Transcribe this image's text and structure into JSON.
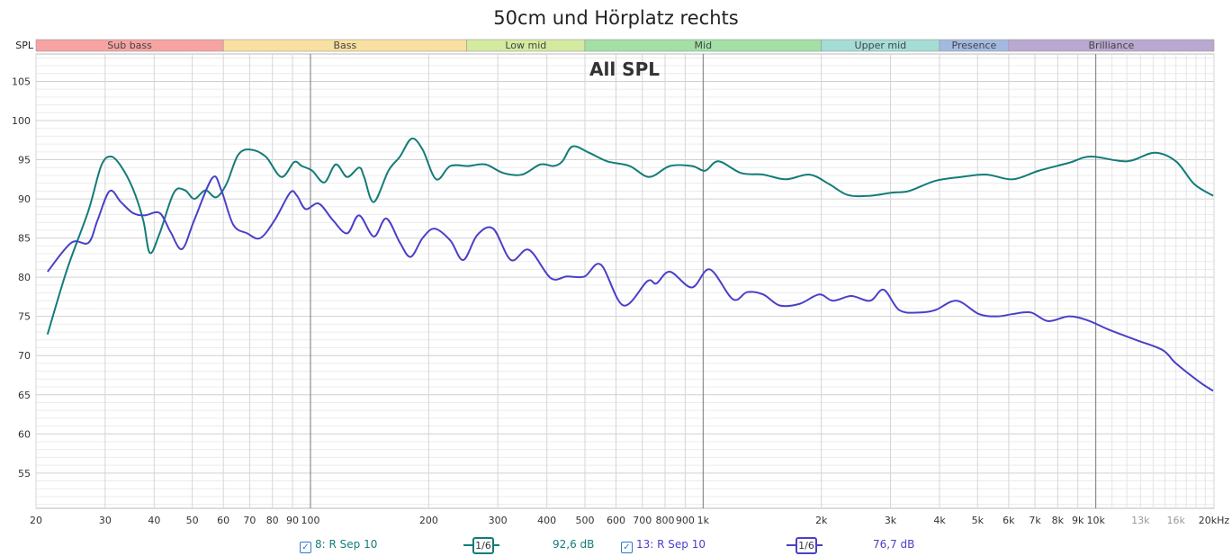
{
  "chart_data": {
    "type": "line",
    "title": "50cm und Hörplatz rechts",
    "overlay_label": "All SPL",
    "ylabel": "SPL",
    "xunit": "Hz",
    "xscale": "log",
    "xlim": [
      20,
      20000
    ],
    "ylim": [
      50.5,
      108.5
    ],
    "grid": true,
    "y_ticks": [
      55,
      60,
      65,
      70,
      75,
      80,
      85,
      90,
      95,
      100,
      105
    ],
    "x_ticks": [
      {
        "v": 20,
        "l": "20"
      },
      {
        "v": 30,
        "l": "30"
      },
      {
        "v": 40,
        "l": "40"
      },
      {
        "v": 50,
        "l": "50"
      },
      {
        "v": 60,
        "l": "60"
      },
      {
        "v": 70,
        "l": "70"
      },
      {
        "v": 80,
        "l": "80"
      },
      {
        "v": 90,
        "l": "90"
      },
      {
        "v": 100,
        "l": "100"
      },
      {
        "v": 200,
        "l": "200"
      },
      {
        "v": 300,
        "l": "300"
      },
      {
        "v": 400,
        "l": "400"
      },
      {
        "v": 500,
        "l": "500"
      },
      {
        "v": 600,
        "l": "600"
      },
      {
        "v": 700,
        "l": "700"
      },
      {
        "v": 800,
        "l": "800"
      },
      {
        "v": 900,
        "l": "900"
      },
      {
        "v": 1000,
        "l": "1k"
      },
      {
        "v": 2000,
        "l": "2k"
      },
      {
        "v": 3000,
        "l": "3k"
      },
      {
        "v": 4000,
        "l": "4k"
      },
      {
        "v": 5000,
        "l": "5k"
      },
      {
        "v": 6000,
        "l": "6k"
      },
      {
        "v": 7000,
        "l": "7k"
      },
      {
        "v": 8000,
        "l": "8k"
      },
      {
        "v": 9000,
        "l": "9k"
      },
      {
        "v": 10000,
        "l": "10k"
      },
      {
        "v": 13000,
        "l": "13k",
        "minor": true
      },
      {
        "v": 16000,
        "l": "16k",
        "minor": true
      },
      {
        "v": 20000,
        "l": "20kHz"
      }
    ],
    "bands": [
      {
        "name": "Sub bass",
        "from": 20,
        "to": 60,
        "color": "#f7a3a3"
      },
      {
        "name": "Bass",
        "from": 60,
        "to": 250,
        "color": "#f8e0a0"
      },
      {
        "name": "Low mid",
        "from": 250,
        "to": 500,
        "color": "#d4ea9f"
      },
      {
        "name": "Mid",
        "from": 500,
        "to": 2000,
        "color": "#a2e0a6"
      },
      {
        "name": "Upper mid",
        "from": 2000,
        "to": 4000,
        "color": "#a3ddd6"
      },
      {
        "name": "Presence",
        "from": 4000,
        "to": 6000,
        "color": "#a3b9e2"
      },
      {
        "name": "Brilliance",
        "from": 6000,
        "to": 20000,
        "color": "#b9a8d0"
      }
    ],
    "series": [
      {
        "name": "8: R Sep 10",
        "smoothing": "1/6",
        "value": "92,6 dB",
        "color": "#137c78",
        "x": [
          21.4,
          24,
          27.2,
          29.3,
          31,
          32.9,
          35.3,
          37.5,
          39,
          41.3,
          44.9,
          47.9,
          50.6,
          54,
          57.5,
          61.1,
          65.4,
          70.2,
          76.9,
          84.3,
          90.9,
          95,
          101,
          108.5,
          116,
          124,
          133,
          137,
          145,
          158,
          169,
          181,
          193,
          209,
          227,
          252,
          279,
          310,
          346,
          385,
          416,
          438,
          465,
          512,
          570,
          650,
          729,
          823,
          936,
          1012,
          1094,
          1249,
          1423,
          1623,
          1867,
          2092,
          2335,
          2663,
          3025,
          3340,
          3900,
          4540,
          5275,
          6140,
          7160,
          8540,
          9700,
          12000,
          14100,
          16000,
          17800,
          19900
        ],
        "y": [
          72.7,
          81,
          88.5,
          94.2,
          95.4,
          94.2,
          91.3,
          87.3,
          83.1,
          85.6,
          90.8,
          91.1,
          90,
          91.1,
          90.2,
          91.9,
          95.6,
          96.3,
          95.4,
          92.8,
          94.7,
          94.2,
          93.6,
          92.1,
          94.4,
          92.8,
          94,
          92.8,
          89.6,
          93.6,
          95.4,
          97.7,
          96.3,
          92.5,
          94.2,
          94.2,
          94.4,
          93.3,
          93.1,
          94.4,
          94.2,
          94.8,
          96.7,
          95.9,
          94.8,
          94.2,
          92.8,
          94.2,
          94.2,
          93.6,
          94.8,
          93.3,
          93.1,
          92.5,
          93.1,
          91.9,
          90.5,
          90.4,
          90.8,
          91,
          92.3,
          92.8,
          93.1,
          92.5,
          93.6,
          94.6,
          95.4,
          94.8,
          95.9,
          94.8,
          91.9,
          90.4
        ]
      },
      {
        "name": "13: R Sep 10",
        "smoothing": "1/6",
        "value": "76,7 dB",
        "color": "#4a40c8",
        "x": [
          21.4,
          24.6,
          27.2,
          28.7,
          30.8,
          32.9,
          35.3,
          37.8,
          41.3,
          44,
          47.1,
          50.6,
          56.3,
          59.3,
          63.6,
          69,
          74.5,
          81.1,
          88.8,
          92.4,
          97.2,
          105,
          114,
          124,
          133,
          145,
          156,
          169,
          180,
          193,
          207,
          227,
          245,
          266,
          292,
          324,
          360,
          409,
          450,
          499,
          549,
          626,
          721,
          760,
          823,
          936,
          1040,
          1190,
          1295,
          1423,
          1565,
          1760,
          1975,
          2140,
          2383,
          2663,
          2883,
          3160,
          3550,
          3900,
          4420,
          5040,
          5610,
          6140,
          6830,
          7560,
          8540,
          9530,
          10800,
          12650,
          14800,
          16000,
          18400,
          19900
        ],
        "y": [
          80.7,
          84.4,
          84.4,
          87.3,
          91,
          89.6,
          88.2,
          87.9,
          88.2,
          85.8,
          83.6,
          87.3,
          92.7,
          91.1,
          86.7,
          85.6,
          85,
          87.3,
          90.8,
          90.4,
          88.7,
          89.4,
          87.3,
          85.6,
          87.9,
          85.2,
          87.5,
          84.4,
          82.6,
          85,
          86.2,
          84.7,
          82.2,
          85.4,
          86.2,
          82.2,
          83.5,
          79.9,
          80.1,
          80.1,
          81.6,
          76.4,
          79.5,
          79.2,
          80.7,
          78.7,
          81,
          77.2,
          78.1,
          77.8,
          76.4,
          76.6,
          77.8,
          77,
          77.6,
          77,
          78.4,
          75.8,
          75.5,
          75.8,
          77,
          75.3,
          75,
          75.3,
          75.5,
          74.4,
          75,
          74.5,
          73.3,
          72,
          70.7,
          69,
          66.6,
          65.5
        ]
      }
    ]
  }
}
